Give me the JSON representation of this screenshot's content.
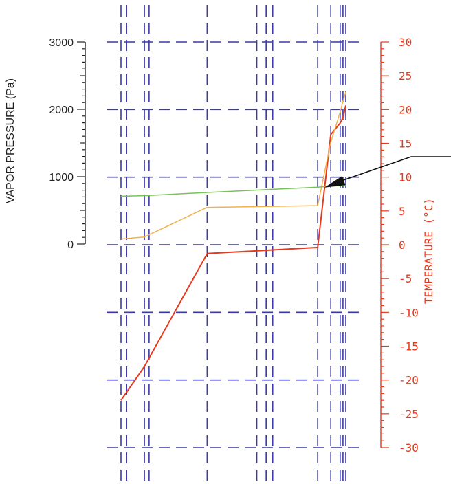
{
  "chart_data": {
    "type": "line",
    "title": "",
    "left_axis": {
      "label": "VAPOR PRESSURE (Pa)",
      "ticks": [
        "0",
        "1000",
        "2000",
        "3000"
      ],
      "tick_values": [
        0,
        1000,
        2000,
        3000
      ],
      "ylim": [
        0,
        3000
      ],
      "color": "#222222"
    },
    "right_axis": {
      "label": "TEMPERATURE (°C)",
      "ticks": [
        "30",
        "25",
        "20",
        "15",
        "10",
        "5",
        "0",
        "-5",
        "-10",
        "-15",
        "-20",
        "-25",
        "-30"
      ],
      "tick_values": [
        30,
        25,
        20,
        15,
        10,
        5,
        0,
        -5,
        -10,
        -15,
        -20,
        -25,
        -30
      ],
      "ylim": [
        -30,
        30
      ],
      "color": "#e8391c"
    },
    "grid": {
      "visible": true,
      "style": "dashed",
      "color": "#3a3aa8"
    },
    "layer_boundaries": [
      0,
      0.06,
      0.25,
      0.3,
      0.92,
      1.45,
      1.55,
      1.62,
      2.1,
      2.24,
      2.34,
      2.37,
      2.4
    ],
    "series": [
      {
        "axis": "right",
        "color": "#e8391c",
        "x": [
          0,
          0.25,
          0.92,
          2.1,
          2.24,
          2.34,
          2.37,
          2.4
        ],
        "y": [
          -23.0,
          -18.0,
          -1.3,
          -0.4,
          16.3,
          18.0,
          18.8,
          20.6
        ]
      },
      {
        "axis": "left",
        "color": "#f2b04b",
        "x": [
          0,
          0.25,
          0.92,
          2.1,
          2.24,
          2.34,
          2.37,
          2.4
        ],
        "y": [
          75,
          105,
          545,
          570,
          1510,
          1960,
          2120,
          2255
        ]
      },
      {
        "axis": "left",
        "color": "#78c258",
        "x": [
          0,
          0.25,
          0.92,
          2.1,
          2.24,
          2.34,
          2.37,
          2.4
        ],
        "y": [
          710,
          718,
          765,
          845,
          860,
          866,
          868,
          868
        ]
      }
    ],
    "annotation": {
      "type": "arrow",
      "target_x": 2.15,
      "target_y_left": 860,
      "label": ""
    }
  }
}
